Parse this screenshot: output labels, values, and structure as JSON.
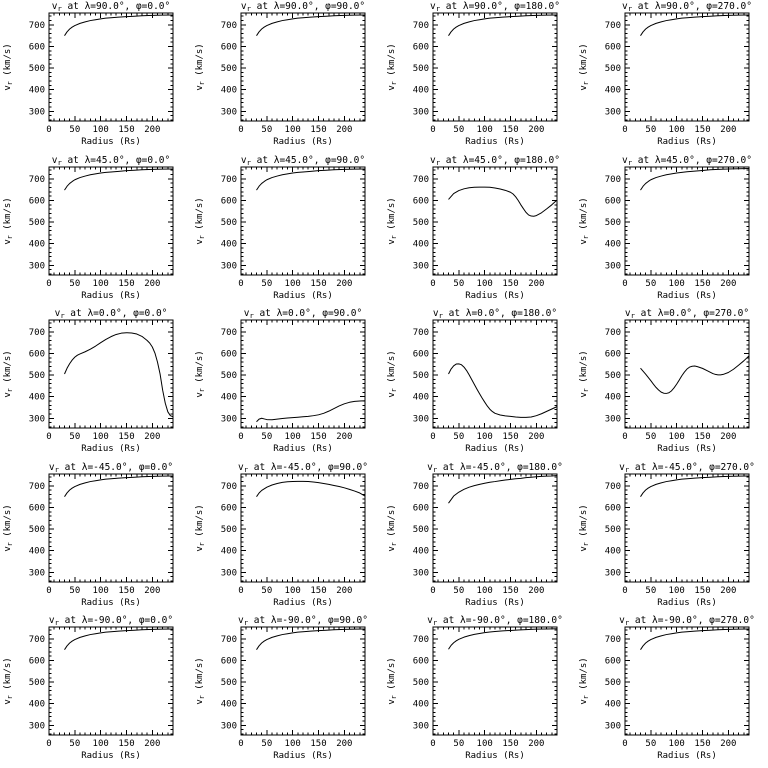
{
  "page": {
    "background": "#ffffff",
    "foreground": "#000000"
  },
  "chart_data": {
    "type": "line",
    "layout": "grid-5x4",
    "common": {
      "xlabel": "Radius (Rs)",
      "ylabel": "v_r (km/s)",
      "xlim": [
        0,
        240
      ],
      "ylim": [
        255,
        755
      ],
      "xticks": [
        0,
        50,
        100,
        150,
        200
      ],
      "yticks": [
        300,
        400,
        500,
        600,
        700
      ],
      "x_minor_step": 10,
      "y_minor_step": 20,
      "grid": "off",
      "line_color": "#000000",
      "background": "#ffffff"
    },
    "panels": [
      {
        "title": "v_r at λ=90.0°, φ=0.0°",
        "lambda": "90.0",
        "phi": "0.0",
        "x": [
          30,
          35,
          40,
          45,
          50,
          60,
          70,
          80,
          90,
          100,
          110,
          120,
          135,
          150,
          165,
          180,
          200,
          220,
          240
        ],
        "y": [
          650,
          668,
          681,
          690,
          697,
          707,
          714,
          720,
          724,
          728,
          731,
          733,
          736,
          738,
          740,
          742,
          744,
          745,
          746
        ]
      },
      {
        "title": "v_r at λ=90.0°, φ=90.0°",
        "lambda": "90.0",
        "phi": "90.0",
        "x": [
          30,
          35,
          40,
          45,
          50,
          60,
          70,
          80,
          90,
          100,
          110,
          120,
          135,
          150,
          165,
          180,
          200,
          220,
          240
        ],
        "y": [
          650,
          668,
          681,
          690,
          697,
          707,
          714,
          720,
          724,
          728,
          731,
          733,
          736,
          738,
          740,
          742,
          744,
          745,
          746
        ]
      },
      {
        "title": "v_r at λ=90.0°, φ=180.0°",
        "lambda": "90.0",
        "phi": "180.0",
        "x": [
          30,
          35,
          40,
          45,
          50,
          60,
          70,
          80,
          90,
          100,
          110,
          120,
          135,
          150,
          165,
          180,
          200,
          220,
          240
        ],
        "y": [
          650,
          668,
          681,
          690,
          697,
          707,
          714,
          720,
          724,
          728,
          731,
          733,
          736,
          738,
          740,
          742,
          744,
          745,
          746
        ]
      },
      {
        "title": "v_r at λ=90.0°, φ=270.0°",
        "lambda": "90.0",
        "phi": "270.0",
        "x": [
          30,
          35,
          40,
          45,
          50,
          60,
          70,
          80,
          90,
          100,
          110,
          120,
          135,
          150,
          165,
          180,
          200,
          220,
          240
        ],
        "y": [
          650,
          668,
          681,
          690,
          697,
          707,
          714,
          720,
          724,
          728,
          731,
          733,
          736,
          738,
          740,
          742,
          744,
          745,
          746
        ]
      },
      {
        "title": "v_r at λ=45.0°, φ=0.0°",
        "lambda": "45.0",
        "phi": "0.0",
        "x": [
          30,
          35,
          40,
          45,
          50,
          60,
          70,
          80,
          90,
          100,
          110,
          120,
          135,
          150,
          165,
          180,
          200,
          220,
          240
        ],
        "y": [
          648,
          666,
          679,
          688,
          696,
          706,
          713,
          719,
          723,
          727,
          730,
          732,
          735,
          738,
          740,
          742,
          744,
          745,
          746
        ]
      },
      {
        "title": "v_r at λ=45.0°, φ=90.0°",
        "lambda": "45.0",
        "phi": "90.0",
        "x": [
          30,
          35,
          40,
          45,
          50,
          60,
          70,
          80,
          90,
          100,
          110,
          120,
          135,
          150,
          165,
          180,
          200,
          220,
          240
        ],
        "y": [
          648,
          666,
          679,
          688,
          696,
          706,
          713,
          719,
          723,
          727,
          730,
          732,
          735,
          738,
          740,
          742,
          744,
          745,
          746
        ]
      },
      {
        "title": "v_r at λ=45.0°, φ=180.0°",
        "lambda": "45.0",
        "phi": "180.0",
        "x": [
          30,
          40,
          50,
          60,
          70,
          80,
          90,
          100,
          110,
          120,
          130,
          140,
          150,
          155,
          160,
          165,
          170,
          175,
          180,
          185,
          190,
          195,
          200,
          210,
          220,
          230,
          240
        ],
        "y": [
          605,
          632,
          646,
          654,
          659,
          661,
          662,
          662,
          661,
          658,
          653,
          647,
          638,
          630,
          617,
          600,
          580,
          562,
          545,
          533,
          528,
          527,
          530,
          543,
          561,
          580,
          602
        ]
      },
      {
        "title": "v_r at λ=45.0°, φ=270.0°",
        "lambda": "45.0",
        "phi": "270.0",
        "x": [
          30,
          35,
          40,
          45,
          50,
          60,
          70,
          80,
          90,
          100,
          110,
          120,
          135,
          150,
          165,
          180,
          200,
          220,
          240
        ],
        "y": [
          648,
          666,
          679,
          688,
          696,
          706,
          713,
          719,
          723,
          727,
          730,
          733,
          736,
          739,
          742,
          744,
          746,
          747,
          748
        ]
      },
      {
        "title": "v_r at λ=0.0°, φ=0.0°",
        "lambda": "0.0",
        "phi": "0.0",
        "x": [
          30,
          35,
          40,
          45,
          50,
          55,
          60,
          70,
          80,
          90,
          100,
          110,
          120,
          130,
          140,
          150,
          160,
          170,
          180,
          190,
          195,
          200,
          205,
          210,
          215,
          220,
          225,
          230,
          235,
          240
        ],
        "y": [
          505,
          532,
          553,
          570,
          583,
          592,
          598,
          608,
          620,
          634,
          650,
          665,
          678,
          688,
          694,
          696,
          695,
          690,
          679,
          660,
          648,
          630,
          602,
          560,
          505,
          430,
          370,
          330,
          312,
          307
        ]
      },
      {
        "title": "v_r at λ=0.0°, φ=90.0°",
        "lambda": "0.0",
        "phi": "90.0",
        "x": [
          30,
          35,
          40,
          45,
          50,
          60,
          70,
          80,
          90,
          100,
          110,
          120,
          130,
          140,
          150,
          160,
          170,
          180,
          190,
          200,
          210,
          220,
          230,
          240
        ],
        "y": [
          284,
          296,
          300,
          297,
          294,
          293,
          296,
          299,
          301,
          303,
          305,
          307,
          309,
          312,
          316,
          323,
          333,
          345,
          357,
          367,
          374,
          378,
          380,
          381
        ]
      },
      {
        "title": "v_r at λ=0.0°, φ=180.0°",
        "lambda": "0.0",
        "phi": "180.0",
        "x": [
          30,
          35,
          40,
          45,
          50,
          55,
          60,
          65,
          70,
          75,
          80,
          85,
          90,
          95,
          100,
          105,
          110,
          115,
          120,
          130,
          140,
          150,
          160,
          170,
          180,
          190,
          200,
          210,
          220,
          230,
          240
        ],
        "y": [
          505,
          528,
          543,
          551,
          552,
          548,
          537,
          521,
          501,
          479,
          457,
          435,
          414,
          394,
          375,
          357,
          342,
          331,
          323,
          315,
          311,
          309,
          306,
          304,
          304,
          306,
          312,
          321,
          332,
          343,
          354
        ]
      },
      {
        "title": "v_r at λ=0.0°, φ=270.0°",
        "lambda": "0.0",
        "phi": "270.0",
        "x": [
          30,
          40,
          50,
          55,
          60,
          65,
          70,
          75,
          80,
          85,
          90,
          95,
          100,
          105,
          110,
          115,
          120,
          125,
          130,
          135,
          140,
          150,
          160,
          170,
          175,
          180,
          185,
          190,
          200,
          210,
          220,
          230,
          240
        ],
        "y": [
          532,
          504,
          474,
          458,
          443,
          431,
          421,
          416,
          415,
          418,
          427,
          441,
          458,
          477,
          497,
          514,
          528,
          537,
          541,
          542,
          539,
          531,
          519,
          507,
          503,
          501,
          501,
          503,
          512,
          527,
          546,
          566,
          589
        ]
      },
      {
        "title": "v_r at λ=-45.0°, φ=0.0°",
        "lambda": "-45.0",
        "phi": "0.0",
        "x": [
          30,
          35,
          40,
          45,
          50,
          60,
          70,
          80,
          90,
          100,
          110,
          120,
          135,
          150,
          165,
          180,
          200,
          220,
          240
        ],
        "y": [
          650,
          668,
          681,
          690,
          697,
          707,
          714,
          720,
          724,
          728,
          731,
          733,
          736,
          738,
          740,
          742,
          744,
          745,
          746
        ]
      },
      {
        "title": "v_r at λ=-45.0°, φ=90.0°",
        "lambda": "-45.0",
        "phi": "90.0",
        "x": [
          30,
          35,
          40,
          50,
          60,
          70,
          80,
          90,
          100,
          110,
          120,
          130,
          140,
          150,
          160,
          170,
          180,
          190,
          200,
          210,
          220,
          230,
          240
        ],
        "y": [
          650,
          667,
          679,
          694,
          704,
          711,
          716,
          719,
          720,
          721,
          721,
          720,
          718,
          715,
          711,
          707,
          702,
          697,
          691,
          684,
          676,
          667,
          653
        ]
      },
      {
        "title": "v_r at λ=-45.0°, φ=180.0°",
        "lambda": "-45.0",
        "phi": "180.0",
        "x": [
          30,
          40,
          50,
          60,
          70,
          80,
          90,
          100,
          110,
          120,
          130,
          140,
          150,
          160,
          170,
          180,
          190,
          200,
          210,
          220,
          230,
          240
        ],
        "y": [
          620,
          653,
          671,
          684,
          694,
          701,
          707,
          712,
          717,
          720,
          724,
          727,
          730,
          733,
          735,
          738,
          740,
          742,
          744,
          745,
          746,
          748
        ]
      },
      {
        "title": "v_r at λ=-45.0°, φ=270.0°",
        "lambda": "-45.0",
        "phi": "270.0",
        "x": [
          30,
          35,
          40,
          45,
          50,
          60,
          70,
          80,
          90,
          100,
          110,
          120,
          135,
          150,
          165,
          180,
          200,
          220,
          240
        ],
        "y": [
          650,
          668,
          681,
          690,
          697,
          707,
          714,
          720,
          724,
          728,
          731,
          733,
          736,
          738,
          740,
          742,
          744,
          745,
          746
        ]
      },
      {
        "title": "v_r at λ=-90.0°, φ=0.0°",
        "lambda": "-90.0",
        "phi": "0.0",
        "x": [
          30,
          35,
          40,
          45,
          50,
          60,
          70,
          80,
          90,
          100,
          110,
          120,
          135,
          150,
          165,
          180,
          200,
          220,
          240
        ],
        "y": [
          650,
          668,
          681,
          690,
          697,
          707,
          714,
          720,
          724,
          728,
          731,
          733,
          736,
          738,
          740,
          742,
          744,
          745,
          746
        ]
      },
      {
        "title": "v_r at λ=-90.0°, φ=90.0°",
        "lambda": "-90.0",
        "phi": "90.0",
        "x": [
          30,
          35,
          40,
          45,
          50,
          60,
          70,
          80,
          90,
          100,
          110,
          120,
          135,
          150,
          165,
          180,
          200,
          220,
          240
        ],
        "y": [
          650,
          668,
          681,
          690,
          697,
          707,
          714,
          720,
          724,
          728,
          731,
          733,
          736,
          738,
          740,
          742,
          744,
          745,
          746
        ]
      },
      {
        "title": "v_r at λ=-90.0°, φ=180.0°",
        "lambda": "-90.0",
        "phi": "180.0",
        "x": [
          30,
          35,
          40,
          45,
          50,
          60,
          70,
          80,
          90,
          100,
          110,
          120,
          135,
          150,
          165,
          180,
          200,
          220,
          240
        ],
        "y": [
          652,
          670,
          682,
          691,
          698,
          708,
          715,
          721,
          725,
          729,
          732,
          734,
          737,
          739,
          741,
          743,
          745,
          746,
          747
        ]
      },
      {
        "title": "v_r at λ=-90.0°, φ=270.0°",
        "lambda": "-90.0",
        "phi": "270.0",
        "x": [
          30,
          35,
          40,
          45,
          50,
          60,
          70,
          80,
          90,
          100,
          110,
          120,
          135,
          150,
          165,
          180,
          200,
          220,
          240
        ],
        "y": [
          650,
          668,
          681,
          690,
          697,
          707,
          714,
          720,
          724,
          728,
          731,
          733,
          736,
          738,
          740,
          742,
          744,
          745,
          746
        ]
      }
    ]
  }
}
